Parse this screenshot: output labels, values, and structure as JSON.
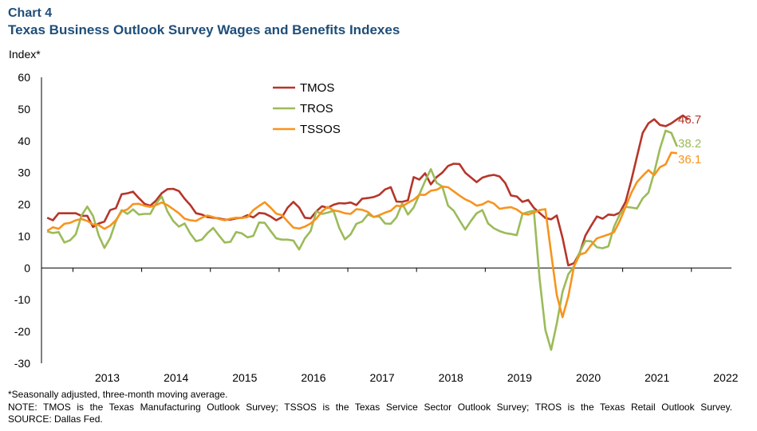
{
  "header": {
    "chart_number": "Chart 4",
    "title": "Texas Business Outlook Survey Wages and Benefits Indexes",
    "y_unit_label": "Index*"
  },
  "notes": {
    "line1": "*Seasonally adjusted, three-month moving average.",
    "line2": "NOTE: TMOS is the Texas Manufacturing Outlook Survey; TSSOS is the Texas Service Sector Outlook Survey; TROS is the Texas Retail Outlook Survey.",
    "line3": "SOURCE: Dallas Fed."
  },
  "chart_data": {
    "type": "line",
    "title": "Texas Business Outlook Survey Wages and Benefits Indexes",
    "xlabel": "",
    "ylabel": "Index*",
    "ylim": [
      -30,
      60
    ],
    "yticks": [
      -30,
      -20,
      -10,
      0,
      10,
      20,
      30,
      40,
      50,
      60
    ],
    "xlim": [
      2012.542,
      2022.583
    ],
    "x_start": 2012.625,
    "x_step": 0.08333,
    "xtick_labels": [
      "2013",
      "2014",
      "2015",
      "2016",
      "2017",
      "2018",
      "2019",
      "2020",
      "2021",
      "2022"
    ],
    "legend_position": "top-center",
    "series": [
      {
        "name": "TMOS",
        "color": "#b5362a",
        "end_label": "46.7",
        "values": [
          15.8,
          15.0,
          17.2,
          17.2,
          17.2,
          17.2,
          16.4,
          16.4,
          12.9,
          14.0,
          14.6,
          18.2,
          18.8,
          23.2,
          23.5,
          24.0,
          22.0,
          20.2,
          19.6,
          21.2,
          23.5,
          24.8,
          24.9,
          24.2,
          21.8,
          19.8,
          17.2,
          16.8,
          16.0,
          15.8,
          15.6,
          15.2,
          15.2,
          15.6,
          15.8,
          16.6,
          15.9,
          17.3,
          17.1,
          16.2,
          15.0,
          16.0,
          19.0,
          20.8,
          19.0,
          15.8,
          15.6,
          17.8,
          19.4,
          18.9,
          19.9,
          20.4,
          20.3,
          20.6,
          19.8,
          21.8,
          22.0,
          22.3,
          23.0,
          24.7,
          25.4,
          20.9,
          20.8,
          21.3,
          28.6,
          27.8,
          29.8,
          26.3,
          28.6,
          30.0,
          32.1,
          32.8,
          32.7,
          30.0,
          28.5,
          27.0,
          28.4,
          29.0,
          29.3,
          28.8,
          26.7,
          22.8,
          22.5,
          20.8,
          21.4,
          18.9,
          17.3,
          15.7,
          15.3,
          16.5,
          9.5,
          0.8,
          1.5,
          4.8,
          10.2,
          13.3,
          16.2,
          15.5,
          16.8,
          16.6,
          17.4,
          20.8,
          27.5,
          35.0,
          42.5,
          45.5,
          46.8,
          45.0,
          44.6,
          45.5,
          46.8,
          48.0,
          46.7
        ]
      },
      {
        "name": "TROS",
        "color": "#9bbb59",
        "end_label": "38.2",
        "values": [
          11.5,
          11.0,
          11.3,
          8.0,
          8.7,
          10.6,
          16.5,
          19.3,
          16.4,
          10.2,
          6.3,
          9.4,
          14.7,
          18.2,
          17.0,
          18.4,
          16.8,
          17.0,
          17.0,
          20.3,
          22.5,
          17.8,
          14.8,
          13.0,
          14.0,
          10.8,
          8.4,
          8.9,
          11.0,
          12.6,
          10.2,
          8.0,
          8.2,
          11.3,
          10.9,
          9.6,
          10.1,
          14.3,
          14.2,
          11.7,
          9.3,
          8.9,
          8.9,
          8.6,
          5.8,
          9.3,
          11.6,
          17.8,
          17.0,
          17.4,
          18.0,
          12.6,
          9.0,
          10.6,
          13.9,
          14.6,
          16.8,
          16.1,
          16.2,
          14.0,
          13.9,
          15.9,
          20.3,
          16.8,
          19.0,
          23.2,
          27.3,
          31.1,
          26.8,
          25.6,
          19.6,
          18.0,
          15.0,
          12.1,
          14.8,
          17.2,
          18.2,
          14.0,
          12.5,
          11.6,
          11.0,
          10.7,
          10.3,
          17.0,
          17.6,
          18.0,
          -3.5,
          -19.5,
          -25.8,
          -17.5,
          -7.5,
          -2.0,
          0.5,
          5.0,
          8.5,
          8.4,
          6.5,
          6.2,
          6.8,
          13.0,
          16.9,
          19.2,
          19.0,
          18.7,
          21.9,
          23.7,
          30.0,
          37.5,
          43.2,
          42.5,
          38.2
        ]
      },
      {
        "name": "TSSOS",
        "color": "#f7941d",
        "end_label": "36.1",
        "values": [
          11.7,
          12.8,
          12.3,
          13.9,
          14.2,
          15.0,
          15.4,
          14.8,
          13.7,
          13.5,
          12.3,
          13.3,
          15.0,
          17.8,
          18.4,
          20.1,
          20.2,
          19.6,
          19.2,
          19.8,
          20.6,
          19.8,
          18.5,
          17.2,
          15.5,
          15.0,
          14.8,
          15.8,
          16.5,
          16.0,
          15.4,
          15.0,
          15.5,
          15.8,
          15.7,
          16.0,
          18.2,
          19.5,
          20.7,
          19.0,
          17.1,
          16.6,
          14.6,
          12.7,
          12.4,
          13.0,
          14.0,
          15.5,
          17.8,
          19.2,
          18.1,
          17.8,
          17.2,
          17.0,
          18.5,
          18.3,
          17.6,
          16.0,
          16.6,
          17.4,
          18.0,
          19.6,
          19.4,
          20.5,
          21.5,
          23.0,
          23.0,
          24.3,
          24.6,
          25.6,
          25.4,
          24.1,
          22.8,
          21.6,
          20.8,
          19.6,
          20.0,
          21.0,
          20.3,
          18.6,
          18.9,
          19.1,
          18.4,
          17.1,
          16.8,
          17.4,
          18.2,
          18.5,
          4.7,
          -8.5,
          -15.5,
          -9.0,
          0.5,
          4.2,
          4.8,
          7.2,
          9.3,
          9.9,
          10.5,
          11.3,
          14.8,
          19.2,
          23.6,
          27.0,
          29.0,
          30.8,
          29.2,
          31.7,
          32.6,
          36.3,
          36.1
        ]
      }
    ]
  }
}
